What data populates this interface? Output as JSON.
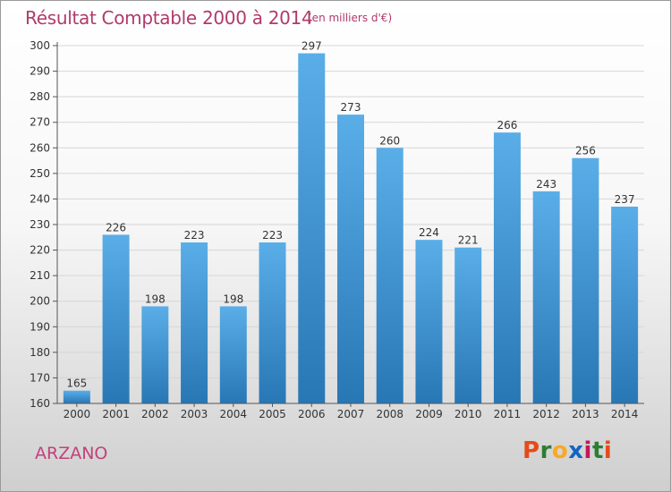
{
  "header": {
    "title": "Résultat Comptable 2000 à 2014",
    "unit": "(en milliers d'€)"
  },
  "footer": {
    "commune": "ARZANO",
    "logo_text": "Proxiti"
  },
  "colors": {
    "bar_top": "#5aaee8",
    "bar_bottom": "#2877b5",
    "title": "#b03a6b",
    "grid": "#d6d6d6"
  },
  "chart_data": {
    "type": "bar",
    "title": "Résultat Comptable 2000 à 2014",
    "categories": [
      "2000",
      "2001",
      "2002",
      "2003",
      "2004",
      "2005",
      "2006",
      "2007",
      "2008",
      "2009",
      "2010",
      "2011",
      "2012",
      "2013",
      "2014"
    ],
    "values": [
      165,
      226,
      198,
      223,
      198,
      223,
      297,
      273,
      260,
      224,
      221,
      266,
      243,
      256,
      237
    ],
    "ylim": [
      160,
      300
    ],
    "yticks": [
      160,
      170,
      180,
      190,
      200,
      210,
      220,
      230,
      240,
      250,
      260,
      270,
      280,
      290,
      300
    ],
    "grid": true,
    "xlabel": "",
    "ylabel": ""
  }
}
